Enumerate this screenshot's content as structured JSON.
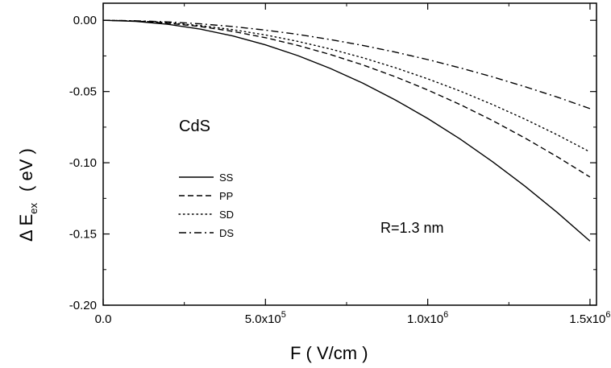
{
  "chart_data": {
    "type": "line",
    "title": "",
    "xlabel": "F  ( V/cm )",
    "ylabel_main": "Δ E",
    "ylabel_sub": "ex",
    "ylabel_unit": "( eV )",
    "xlim": [
      0,
      1520000
    ],
    "ylim": [
      -0.2,
      0.012
    ],
    "x_ticks": [
      {
        "value": 0,
        "label": "0.0",
        "exp": ""
      },
      {
        "value": 500000,
        "label": "5.0x10",
        "exp": "5"
      },
      {
        "value": 1000000,
        "label": "1.0x10",
        "exp": "6"
      },
      {
        "value": 1500000,
        "label": "1.5x10",
        "exp": "6"
      }
    ],
    "y_ticks": [
      {
        "value": 0.0,
        "label": "0.00"
      },
      {
        "value": -0.05,
        "label": "-0.05"
      },
      {
        "value": -0.1,
        "label": "-0.10"
      },
      {
        "value": -0.15,
        "label": "-0.15"
      },
      {
        "value": -0.2,
        "label": "-0.20"
      }
    ],
    "x": [
      0,
      100000,
      200000,
      300000,
      400000,
      500000,
      600000,
      700000,
      800000,
      900000,
      1000000,
      1100000,
      1200000,
      1300000,
      1400000,
      1500000
    ],
    "series": [
      {
        "name": "SS",
        "dash": "solid",
        "values": [
          0,
          -0.0007,
          -0.0028,
          -0.0062,
          -0.011,
          -0.0172,
          -0.0248,
          -0.0338,
          -0.0441,
          -0.0559,
          -0.0689,
          -0.0834,
          -0.0993,
          -0.1165,
          -0.1351,
          -0.155
        ]
      },
      {
        "name": "PP",
        "dash": "dashed",
        "values": [
          0,
          -0.0005,
          -0.002,
          -0.0044,
          -0.0078,
          -0.0122,
          -0.0176,
          -0.024,
          -0.0313,
          -0.0396,
          -0.0489,
          -0.0592,
          -0.0704,
          -0.0827,
          -0.0959,
          -0.11
        ]
      },
      {
        "name": "SD",
        "dash": "dotted",
        "values": [
          0,
          -0.0004,
          -0.0016,
          -0.0037,
          -0.0066,
          -0.0103,
          -0.0148,
          -0.0201,
          -0.0263,
          -0.0333,
          -0.0411,
          -0.0497,
          -0.0592,
          -0.0694,
          -0.0805,
          -0.0924
        ]
      },
      {
        "name": "DS",
        "dash": "dashdot",
        "values": [
          0,
          -0.0003,
          -0.0011,
          -0.0025,
          -0.0044,
          -0.0069,
          -0.0099,
          -0.0135,
          -0.0176,
          -0.0223,
          -0.0276,
          -0.0334,
          -0.0397,
          -0.0466,
          -0.054,
          -0.062
        ]
      }
    ],
    "annotations": {
      "material": "CdS",
      "radius": "R=1.3 nm"
    },
    "legend_position": "center-left",
    "grid": false
  }
}
